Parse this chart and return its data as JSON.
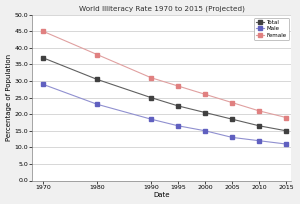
{
  "title": "World Illiteracy Rate 1970 to 2015 (Projected)",
  "xlabel": "Date",
  "ylabel": "Percentage of Population",
  "years": [
    1970,
    1980,
    1990,
    1995,
    2000,
    2005,
    2010,
    2015
  ],
  "total": [
    37.0,
    30.5,
    25.0,
    22.5,
    20.5,
    18.5,
    16.5,
    15.0
  ],
  "male": [
    29.0,
    23.0,
    18.5,
    16.5,
    15.0,
    13.0,
    12.0,
    11.0
  ],
  "female": [
    45.0,
    38.0,
    31.0,
    28.5,
    26.0,
    23.5,
    21.0,
    19.0
  ],
  "total_color": "#404040",
  "male_color": "#6060c0",
  "female_color": "#e08080",
  "total_line_color": "#606060",
  "male_line_color": "#9090d0",
  "female_line_color": "#e0a0a0",
  "ylim": [
    0.0,
    50.0
  ],
  "yticks": [
    0.0,
    5.0,
    10.0,
    15.0,
    20.0,
    25.0,
    30.0,
    35.0,
    40.0,
    45.0,
    50.0
  ],
  "xticks": [
    1970,
    1980,
    1990,
    1995,
    2000,
    2005,
    2010,
    2015
  ],
  "legend_labels": [
    "Total",
    "Male",
    "Female"
  ],
  "bg_color": "#f0f0f0",
  "plot_bg_color": "#ffffff",
  "grid_color": "#c8c8c8"
}
